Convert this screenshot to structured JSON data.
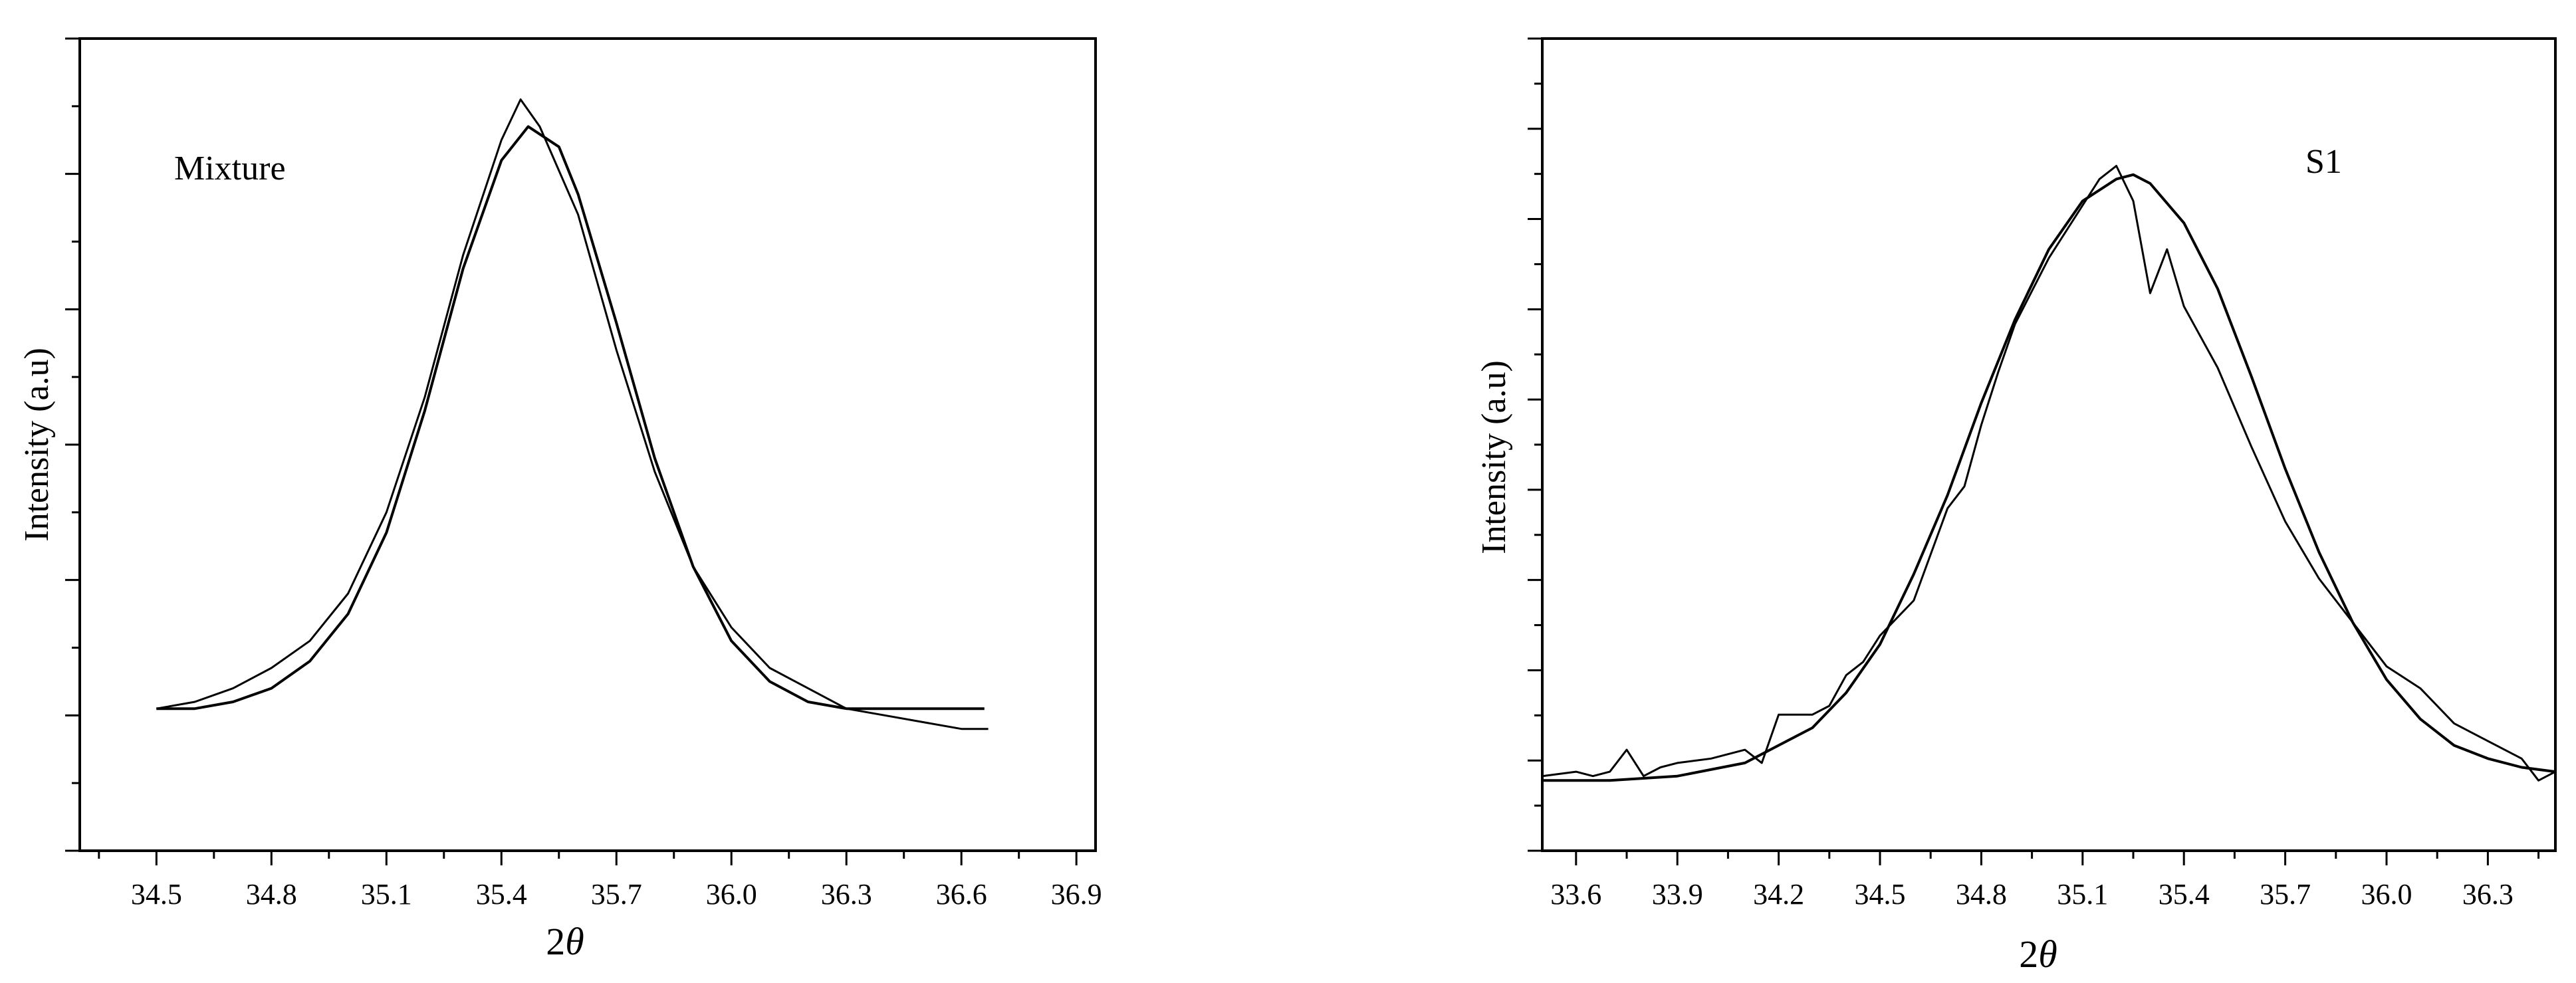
{
  "chart_data": [
    {
      "type": "line",
      "title": "",
      "annotation": "Mixture",
      "xlabel": "2θ",
      "xlabel_prefix": "2",
      "xlabel_symbol": "θ",
      "ylabel": "Intensity (a.u)",
      "xlim": [
        34.3,
        36.95
      ],
      "ylim": [
        0,
        1.2
      ],
      "x_ticks": [
        34.5,
        34.8,
        35.1,
        35.4,
        35.7,
        36.0,
        36.3,
        36.6,
        36.9
      ],
      "x_tick_labels": [
        "34.5",
        "34.8",
        "35.1",
        "35.4",
        "35.7",
        "36.0",
        "36.3",
        "36.6",
        "36.9"
      ],
      "y_tick_labels_shown": false,
      "grid": false,
      "legend": "none",
      "series": [
        {
          "role": "experimental",
          "x": [
            34.5,
            34.6,
            34.7,
            34.8,
            34.9,
            35.0,
            35.1,
            35.2,
            35.3,
            35.4,
            35.45,
            35.5,
            35.6,
            35.7,
            35.8,
            35.9,
            36.0,
            36.1,
            36.2,
            36.3,
            36.4,
            36.5,
            36.6,
            36.67
          ],
          "y": [
            0.21,
            0.22,
            0.24,
            0.27,
            0.31,
            0.38,
            0.5,
            0.67,
            0.88,
            1.05,
            1.11,
            1.07,
            0.94,
            0.74,
            0.56,
            0.42,
            0.33,
            0.27,
            0.24,
            0.21,
            0.2,
            0.19,
            0.18,
            0.18
          ]
        },
        {
          "role": "fit",
          "x": [
            34.5,
            34.6,
            34.7,
            34.8,
            34.9,
            35.0,
            35.1,
            35.2,
            35.3,
            35.4,
            35.47,
            35.55,
            35.6,
            35.7,
            35.8,
            35.9,
            36.0,
            36.1,
            36.2,
            36.3,
            36.4,
            36.5,
            36.6,
            36.66
          ],
          "y": [
            0.21,
            0.21,
            0.22,
            0.24,
            0.28,
            0.35,
            0.47,
            0.65,
            0.86,
            1.02,
            1.07,
            1.04,
            0.97,
            0.78,
            0.58,
            0.42,
            0.31,
            0.25,
            0.22,
            0.21,
            0.21,
            0.21,
            0.21,
            0.21
          ]
        }
      ]
    },
    {
      "type": "line",
      "title": "",
      "annotation": "S1",
      "xlabel": "2θ",
      "xlabel_prefix": "2",
      "xlabel_symbol": "θ",
      "ylabel": "Intensity (a.u)",
      "xlim": [
        33.5,
        36.5
      ],
      "ylim": [
        -0.15,
        1.7
      ],
      "x_ticks": [
        33.6,
        33.9,
        34.2,
        34.5,
        34.8,
        35.1,
        35.4,
        35.7,
        36.0,
        36.3
      ],
      "x_tick_labels": [
        "33.6",
        "33.9",
        "34.2",
        "34.5",
        "34.8",
        "35.1",
        "35.4",
        "35.7",
        "36.0",
        "36.3"
      ],
      "y_tick_labels_shown": false,
      "grid": false,
      "legend": "none",
      "series": [
        {
          "role": "experimental",
          "x": [
            33.5,
            33.6,
            33.65,
            33.7,
            33.75,
            33.8,
            33.85,
            33.9,
            34.0,
            34.1,
            34.15,
            34.2,
            34.3,
            34.35,
            34.4,
            34.45,
            34.5,
            34.6,
            34.7,
            34.75,
            34.8,
            34.85,
            34.9,
            35.0,
            35.1,
            35.15,
            35.2,
            35.25,
            35.3,
            35.35,
            35.4,
            35.5,
            35.6,
            35.7,
            35.8,
            35.9,
            36.0,
            36.1,
            36.2,
            36.3,
            36.4,
            36.45,
            36.5
          ],
          "y": [
            0.02,
            0.03,
            0.02,
            0.03,
            0.08,
            0.02,
            0.04,
            0.05,
            0.06,
            0.08,
            0.05,
            0.16,
            0.16,
            0.18,
            0.25,
            0.28,
            0.34,
            0.42,
            0.63,
            0.68,
            0.82,
            0.94,
            1.05,
            1.2,
            1.32,
            1.38,
            1.41,
            1.33,
            1.12,
            1.22,
            1.09,
            0.95,
            0.77,
            0.6,
            0.47,
            0.37,
            0.27,
            0.22,
            0.14,
            0.1,
            0.06,
            0.01,
            0.03
          ]
        },
        {
          "role": "fit",
          "x": [
            33.5,
            33.7,
            33.9,
            34.1,
            34.3,
            34.4,
            34.5,
            34.6,
            34.7,
            34.8,
            34.9,
            35.0,
            35.1,
            35.2,
            35.25,
            35.3,
            35.4,
            35.5,
            35.6,
            35.7,
            35.8,
            35.9,
            36.0,
            36.1,
            36.2,
            36.3,
            36.4,
            36.5
          ],
          "y": [
            0.01,
            0.01,
            0.02,
            0.05,
            0.13,
            0.21,
            0.32,
            0.48,
            0.66,
            0.87,
            1.06,
            1.22,
            1.33,
            1.38,
            1.39,
            1.37,
            1.28,
            1.13,
            0.93,
            0.72,
            0.53,
            0.37,
            0.24,
            0.15,
            0.09,
            0.06,
            0.04,
            0.03
          ]
        }
      ]
    }
  ]
}
